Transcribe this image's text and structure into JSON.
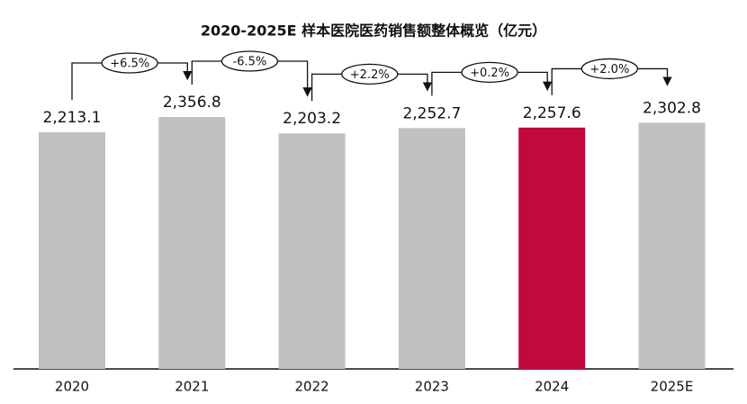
{
  "chart_data": {
    "type": "bar",
    "title": "2020-2025E 样本医院医药销售额整体概览（亿元）",
    "categories": [
      "2020",
      "2021",
      "2022",
      "2023",
      "2024",
      "2025E"
    ],
    "values": [
      2213.1,
      2356.8,
      2203.2,
      2252.7,
      2257.6,
      2302.8
    ],
    "value_labels": [
      "2,213.1",
      "2,356.8",
      "2,203.2",
      "2,252.7",
      "2,257.6",
      "2,302.8"
    ],
    "colors": [
      "#c0c0c0",
      "#c0c0c0",
      "#c0c0c0",
      "#c0c0c0",
      "#c0093c",
      "#c0c0c0"
    ],
    "growth": {
      "values": [
        6.5,
        -6.5,
        2.2,
        0.2,
        2.0
      ],
      "value_labels": [
        "+6.5%",
        "-6.5%",
        "+2.2%",
        "+0.2%",
        "+2.0%"
      ]
    }
  }
}
